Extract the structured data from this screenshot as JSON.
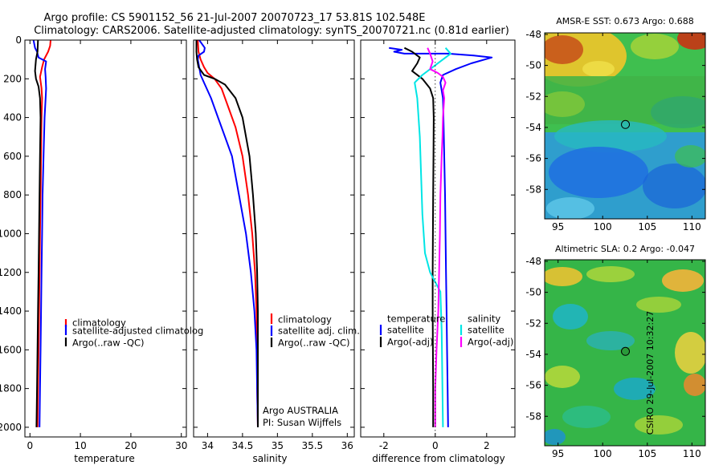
{
  "header": {
    "title_line1": "Argo profile: CS 5901152_56 21-Jul-2007 20070723_17 53.81S 102.548E",
    "title_line2": "Climatology: CARS2006. Satellite-adjusted climatology: synTS_20070721.nc (0.81d earlier)"
  },
  "depth_ticks": [
    "0",
    "200",
    "400",
    "600",
    "800",
    "1000",
    "1200",
    "1400",
    "1600",
    "1800",
    "2000"
  ],
  "colors": {
    "red": "#ff0000",
    "blue": "#0000ff",
    "black": "#000000",
    "cyan": "#00e5e5",
    "magenta": "#ff00ff"
  },
  "chart_data": [
    {
      "type": "line",
      "id": "temperature",
      "xlabel": "temperature",
      "ylabel": "depth",
      "xlim": [
        -1,
        31
      ],
      "ylim": [
        2050,
        0
      ],
      "xticks": [
        0,
        10,
        20,
        30
      ],
      "xtick_labels": [
        "0",
        "10",
        "20",
        "30"
      ],
      "legend": [
        "climatology",
        "satellite-adjusted climatology",
        "Argo(..raw -QC)"
      ],
      "legend_display": [
        "climatology",
        "satellite-adjusted climatolog",
        "Argo(..raw -QC)"
      ],
      "series": [
        {
          "name": "climatology",
          "color": "red",
          "points": [
            [
              4.1,
              0
            ],
            [
              4.0,
              30
            ],
            [
              3.6,
              60
            ],
            [
              2.8,
              100
            ],
            [
              2.4,
              140
            ],
            [
              2.0,
              190
            ],
            [
              2.3,
              250
            ],
            [
              2.4,
              300
            ],
            [
              2.3,
              400
            ],
            [
              2.2,
              600
            ],
            [
              2.1,
              800
            ],
            [
              2.0,
              1000
            ],
            [
              1.9,
              1200
            ],
            [
              1.8,
              1400
            ],
            [
              1.7,
              1600
            ],
            [
              1.6,
              1800
            ],
            [
              1.5,
              2000
            ]
          ]
        },
        {
          "name": "satellite-adjusted climatology",
          "color": "blue",
          "points": [
            [
              0.7,
              0
            ],
            [
              1.0,
              40
            ],
            [
              1.4,
              60
            ],
            [
              1.7,
              90
            ],
            [
              3.2,
              110
            ],
            [
              3.0,
              150
            ],
            [
              3.1,
              190
            ],
            [
              3.2,
              250
            ],
            [
              3.1,
              300
            ],
            [
              2.9,
              400
            ],
            [
              2.7,
              600
            ],
            [
              2.5,
              800
            ],
            [
              2.4,
              1000
            ],
            [
              2.3,
              1200
            ],
            [
              2.2,
              1400
            ],
            [
              2.1,
              1600
            ],
            [
              2.0,
              1800
            ],
            [
              1.9,
              2000
            ]
          ]
        },
        {
          "name": "Argo(..raw -QC)",
          "color": "black",
          "points": [
            [
              1.6,
              0
            ],
            [
              1.5,
              60
            ],
            [
              1.2,
              100
            ],
            [
              1.0,
              160
            ],
            [
              1.2,
              200
            ],
            [
              1.7,
              240
            ],
            [
              2.0,
              300
            ],
            [
              2.1,
              400
            ],
            [
              2.0,
              600
            ],
            [
              1.9,
              800
            ],
            [
              1.8,
              1000
            ],
            [
              1.7,
              1200
            ],
            [
              1.6,
              1400
            ],
            [
              1.5,
              1600
            ],
            [
              1.4,
              1800
            ],
            [
              1.3,
              2000
            ]
          ]
        }
      ]
    },
    {
      "type": "line",
      "id": "salinity",
      "xlabel": "salinity",
      "ylabel": "depth",
      "xlim": [
        33.8,
        36.1
      ],
      "ylim": [
        2050,
        0
      ],
      "xticks": [
        34,
        34.5,
        35,
        35.5,
        36
      ],
      "xtick_labels": [
        "34",
        "34.5",
        "35",
        "35.5",
        "36"
      ],
      "legend": [
        "climatology",
        "satellite adj. clim.",
        "Argo(..raw -QC)"
      ],
      "annotation_line1": "Argo AUSTRALIA",
      "annotation_line2": "PI: Susan Wijffels",
      "series": [
        {
          "name": "climatology",
          "color": "red",
          "points": [
            [
              33.86,
              0
            ],
            [
              33.87,
              60
            ],
            [
              33.9,
              100
            ],
            [
              33.95,
              140
            ],
            [
              34.0,
              170
            ],
            [
              34.1,
              200
            ],
            [
              34.2,
              250
            ],
            [
              34.3,
              350
            ],
            [
              34.4,
              450
            ],
            [
              34.5,
              600
            ],
            [
              34.58,
              800
            ],
            [
              34.64,
              1000
            ],
            [
              34.68,
              1200
            ],
            [
              34.7,
              1400
            ],
            [
              34.71,
              1600
            ],
            [
              34.71,
              1800
            ],
            [
              34.72,
              2000
            ]
          ]
        },
        {
          "name": "satellite adj. clim.",
          "color": "blue",
          "points": [
            [
              33.88,
              0
            ],
            [
              33.92,
              20
            ],
            [
              33.96,
              40
            ],
            [
              33.95,
              60
            ],
            [
              33.87,
              80
            ],
            [
              33.86,
              100
            ],
            [
              33.88,
              140
            ],
            [
              33.9,
              180
            ],
            [
              33.95,
              220
            ],
            [
              34.05,
              300
            ],
            [
              34.15,
              400
            ],
            [
              34.25,
              500
            ],
            [
              34.35,
              600
            ],
            [
              34.45,
              800
            ],
            [
              34.55,
              1000
            ],
            [
              34.62,
              1200
            ],
            [
              34.67,
              1400
            ],
            [
              34.7,
              1600
            ],
            [
              34.71,
              1800
            ],
            [
              34.72,
              2000
            ]
          ]
        },
        {
          "name": "Argo(..raw -QC)",
          "color": "black",
          "points": [
            [
              33.84,
              0
            ],
            [
              33.84,
              60
            ],
            [
              33.85,
              100
            ],
            [
              33.87,
              140
            ],
            [
              33.95,
              180
            ],
            [
              34.1,
              200
            ],
            [
              34.25,
              230
            ],
            [
              34.4,
              300
            ],
            [
              34.5,
              400
            ],
            [
              34.6,
              600
            ],
            [
              34.65,
              800
            ],
            [
              34.69,
              1000
            ],
            [
              34.71,
              1200
            ],
            [
              34.72,
              1400
            ],
            [
              34.72,
              1600
            ],
            [
              34.72,
              1800
            ],
            [
              34.72,
              2000
            ]
          ]
        }
      ]
    },
    {
      "type": "line",
      "id": "difference",
      "xlabel": "difference from climatology",
      "ylabel": "depth",
      "xlim": [
        -2.9,
        3.1
      ],
      "ylim": [
        2050,
        0
      ],
      "xticks": [
        -2,
        0,
        2
      ],
      "xtick_labels": [
        "-2",
        "0",
        "2"
      ],
      "legend_left_title": "temperature",
      "legend_right_title": "salinity",
      "legend": [
        "satellite",
        "Argo(-adj)",
        "satellite",
        "Argo(-adj)"
      ],
      "series": [
        {
          "name": "temperature satellite",
          "color": "blue",
          "points": [
            [
              -1.8,
              40
            ],
            [
              -1.3,
              50
            ],
            [
              -1.6,
              60
            ],
            [
              -1.2,
              70
            ],
            [
              0.5,
              70
            ],
            [
              1.5,
              80
            ],
            [
              2.2,
              90
            ],
            [
              1.4,
              120
            ],
            [
              0.8,
              150
            ],
            [
              0.3,
              180
            ],
            [
              0.2,
              220
            ],
            [
              0.3,
              300
            ],
            [
              0.32,
              400
            ],
            [
              0.35,
              600
            ],
            [
              0.38,
              800
            ],
            [
              0.4,
              1000
            ],
            [
              0.42,
              1200
            ],
            [
              0.44,
              1400
            ],
            [
              0.46,
              1600
            ],
            [
              0.48,
              1800
            ],
            [
              0.5,
              2000
            ]
          ]
        },
        {
          "name": "temperature Argo(-adj)",
          "color": "black",
          "points": [
            [
              -1.2,
              40
            ],
            [
              -0.9,
              60
            ],
            [
              -0.6,
              90
            ],
            [
              -0.7,
              120
            ],
            [
              -0.9,
              160
            ],
            [
              -0.5,
              200
            ],
            [
              -0.2,
              250
            ],
            [
              -0.08,
              300
            ],
            [
              -0.06,
              400
            ],
            [
              -0.07,
              600
            ],
            [
              -0.08,
              800
            ],
            [
              -0.09,
              1000
            ],
            [
              -0.1,
              1200
            ],
            [
              -0.1,
              1400
            ],
            [
              -0.09,
              1600
            ],
            [
              -0.08,
              1800
            ],
            [
              -0.08,
              2000
            ]
          ]
        },
        {
          "name": "salinity satellite",
          "color": "cyan",
          "points": [
            [
              0.4,
              40
            ],
            [
              0.6,
              70
            ],
            [
              0.2,
              110
            ],
            [
              -0.5,
              180
            ],
            [
              -0.8,
              220
            ],
            [
              -0.7,
              300
            ],
            [
              -0.6,
              500
            ],
            [
              -0.55,
              700
            ],
            [
              -0.5,
              900
            ],
            [
              -0.4,
              1100
            ],
            [
              -0.2,
              1200
            ],
            [
              0.2,
              1300
            ],
            [
              0.25,
              1500
            ],
            [
              0.3,
              2000
            ]
          ]
        },
        {
          "name": "salinity Argo(-adj)",
          "color": "magenta",
          "points": [
            [
              -0.3,
              40
            ],
            [
              -0.2,
              70
            ],
            [
              -0.1,
              110
            ],
            [
              -0.2,
              150
            ],
            [
              0.1,
              170
            ],
            [
              0.3,
              190
            ],
            [
              0.4,
              220
            ],
            [
              0.3,
              260
            ],
            [
              0.35,
              300
            ],
            [
              0.3,
              400
            ],
            [
              0.28,
              500
            ],
            [
              0.25,
              600
            ],
            [
              0.2,
              800
            ],
            [
              0.18,
              1000
            ],
            [
              0.15,
              1200
            ],
            [
              0.12,
              1400
            ],
            [
              0.05,
              1600
            ],
            [
              0.0,
              1800
            ],
            [
              0.0,
              2000
            ]
          ]
        }
      ]
    },
    {
      "type": "heatmap",
      "id": "sst-map",
      "title": "AMSR-E SST: 0.673 Argo: 0.688",
      "xlim": [
        93.5,
        111.5
      ],
      "ylim": [
        -59.9,
        -47.9
      ],
      "xticks": [
        95,
        100,
        105,
        110
      ],
      "xtick_labels": [
        "95",
        "100",
        "105",
        "110"
      ],
      "yticks": [
        -48,
        -50,
        -52,
        -54,
        -56,
        -58
      ],
      "ytick_labels": [
        "-48",
        "-50",
        "-52",
        "-54",
        "-56",
        "-58"
      ],
      "marker": {
        "lon": 102.548,
        "lat": -53.81
      }
    },
    {
      "type": "heatmap",
      "id": "sla-map",
      "title": "Altimetric SLA: 0.2 Argo: -0.047",
      "xlim": [
        93.5,
        111.5
      ],
      "ylim": [
        -59.9,
        -47.9
      ],
      "xticks": [
        95,
        100,
        105,
        110
      ],
      "xtick_labels": [
        "95",
        "100",
        "105",
        "110"
      ],
      "yticks": [
        -48,
        -50,
        -52,
        -54,
        -56,
        -58
      ],
      "ytick_labels": [
        "-48",
        "-50",
        "-52",
        "-54",
        "-56",
        "-58"
      ],
      "marker": {
        "lon": 102.548,
        "lat": -53.81
      }
    }
  ],
  "footer": {
    "credit": "CSIRO 29-Jul-2007 10:32:27"
  }
}
